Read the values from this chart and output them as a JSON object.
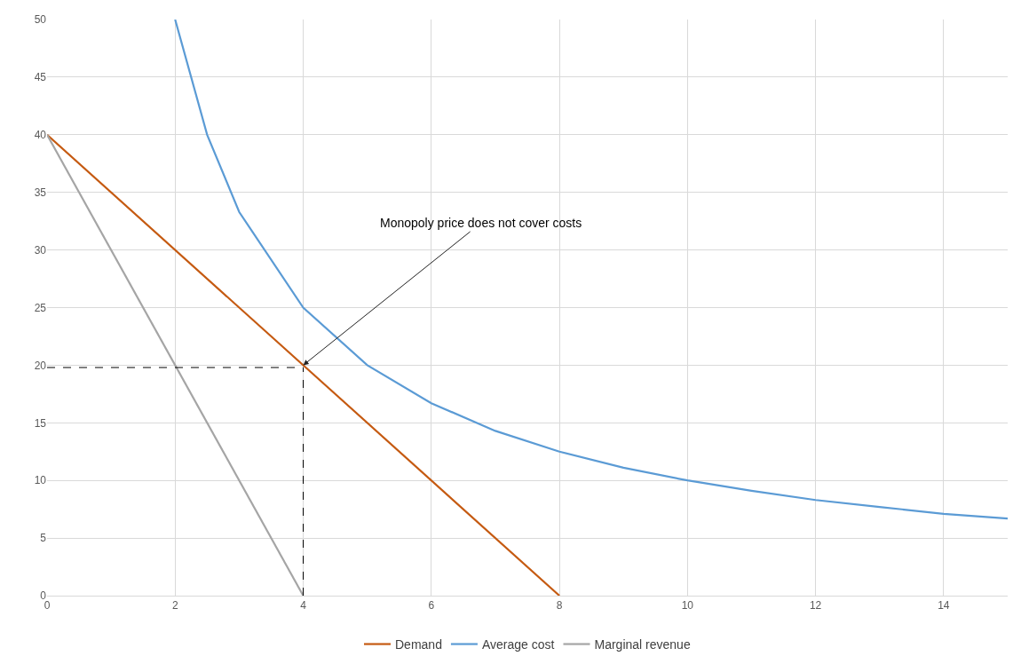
{
  "chart_data": {
    "type": "line",
    "xlim": [
      0,
      15
    ],
    "xticks": [
      0,
      2,
      4,
      6,
      8,
      10,
      12,
      14
    ],
    "ylim": [
      0,
      50
    ],
    "yticks": [
      0,
      5,
      10,
      15,
      20,
      25,
      30,
      35,
      40,
      45,
      50
    ],
    "grid": true,
    "legend": "bottom",
    "marker": "none",
    "annotations": [
      {
        "text": "Monopoly price does not cover costs",
        "x": 4,
        "y": 20
      }
    ],
    "series": [
      {
        "name": "Demand",
        "color": "#c55a11",
        "x": [
          0,
          8
        ],
        "values": [
          40,
          0
        ]
      },
      {
        "name": "Average cost",
        "color": "#5b9bd5",
        "x": [
          2,
          2.5,
          3,
          4,
          5,
          6,
          7,
          8,
          9,
          10,
          11,
          12,
          13,
          14,
          15
        ],
        "values": [
          50,
          40,
          33.3,
          25,
          20,
          16.7,
          14.3,
          12.5,
          11.1,
          10,
          9.1,
          8.3,
          7.7,
          7.1,
          6.7
        ]
      },
      {
        "name": "Marginal revenue",
        "color": "#a5a5a5",
        "x": [
          0,
          4
        ],
        "values": [
          40,
          0
        ]
      },
      {
        "color": "#000000",
        "line_style": "dashed",
        "x": [
          0,
          4
        ],
        "values": [
          19.8,
          19.8
        ]
      },
      {
        "color": "#000000",
        "line_style": "dashed",
        "x": [
          4,
          4
        ],
        "values": [
          0,
          19.8
        ]
      }
    ]
  }
}
